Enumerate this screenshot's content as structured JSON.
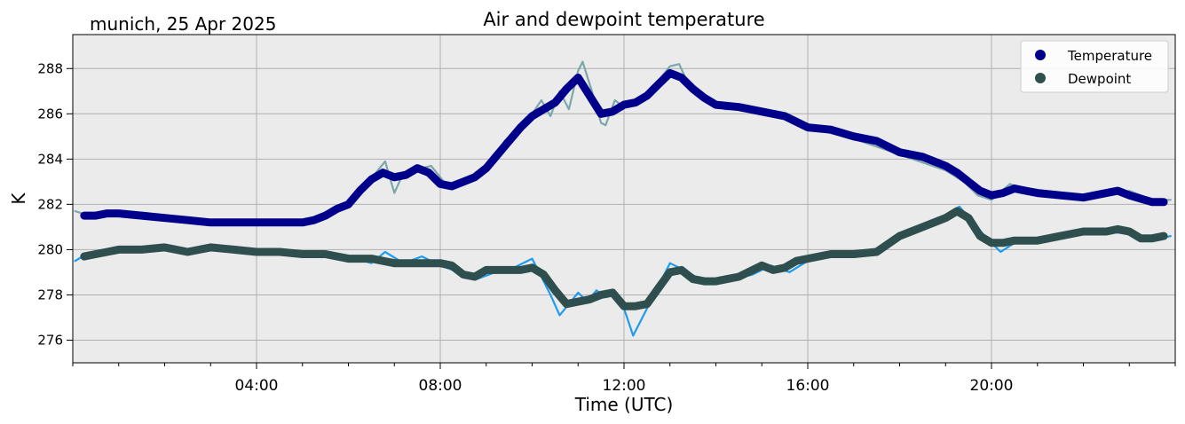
{
  "chart_data": {
    "type": "line",
    "title": "Air and dewpoint temperature",
    "subtitle": "munich, 25 Apr 2025",
    "xlabel": "Time (UTC)",
    "ylabel": "K",
    "xlim": [
      0,
      24
    ],
    "ylim": [
      275,
      289.5
    ],
    "x_ticks": [
      4,
      8,
      12,
      16,
      20
    ],
    "x_tick_labels": [
      "04:00",
      "08:00",
      "12:00",
      "16:00",
      "20:00"
    ],
    "y_ticks": [
      276,
      278,
      280,
      282,
      284,
      286,
      288
    ],
    "y_tick_labels": [
      "276",
      "278",
      "280",
      "282",
      "284",
      "286",
      "288"
    ],
    "grid": true,
    "legend_position": "top-right",
    "background": "#ebebeb",
    "series": [
      {
        "name": "Temperature",
        "role": "smoothed",
        "color": "#00008b",
        "x": [
          0.25,
          0.5,
          0.75,
          1.0,
          1.5,
          2.0,
          2.5,
          3.0,
          3.5,
          4.0,
          4.5,
          5.0,
          5.25,
          5.5,
          5.75,
          6.0,
          6.25,
          6.5,
          6.75,
          7.0,
          7.25,
          7.5,
          7.75,
          8.0,
          8.25,
          8.5,
          8.75,
          9.0,
          9.25,
          9.5,
          9.75,
          10.0,
          10.25,
          10.5,
          10.75,
          11.0,
          11.25,
          11.5,
          11.75,
          12.0,
          12.25,
          12.5,
          12.75,
          13.0,
          13.25,
          13.5,
          13.75,
          14.0,
          14.5,
          15.0,
          15.5,
          16.0,
          16.5,
          17.0,
          17.5,
          18.0,
          18.5,
          19.0,
          19.25,
          19.5,
          19.75,
          20.0,
          20.25,
          20.5,
          20.75,
          21.0,
          21.5,
          22.0,
          22.5,
          22.75,
          23.0,
          23.5,
          23.75
        ],
        "y": [
          281.5,
          281.5,
          281.6,
          281.6,
          281.5,
          281.4,
          281.3,
          281.2,
          281.2,
          281.2,
          281.2,
          281.2,
          281.3,
          281.5,
          281.8,
          282.0,
          282.6,
          283.1,
          283.4,
          283.2,
          283.3,
          283.6,
          283.4,
          282.9,
          282.8,
          283.0,
          283.2,
          283.6,
          284.2,
          284.8,
          285.4,
          285.9,
          286.2,
          286.5,
          287.1,
          287.6,
          286.8,
          286.0,
          286.1,
          286.4,
          286.5,
          286.8,
          287.3,
          287.8,
          287.6,
          287.1,
          286.7,
          286.4,
          286.3,
          286.1,
          285.9,
          285.4,
          285.3,
          285.0,
          284.8,
          284.3,
          284.1,
          283.7,
          283.4,
          283.0,
          282.6,
          282.4,
          282.5,
          282.7,
          282.6,
          282.5,
          282.4,
          282.3,
          282.5,
          282.6,
          282.4,
          282.1,
          282.1
        ]
      },
      {
        "name": "Dewpoint",
        "role": "smoothed",
        "color": "#2f4f4f",
        "x": [
          0.25,
          0.5,
          0.75,
          1.0,
          1.5,
          2.0,
          2.5,
          3.0,
          3.5,
          4.0,
          4.5,
          5.0,
          5.5,
          6.0,
          6.5,
          7.0,
          7.5,
          8.0,
          8.25,
          8.5,
          8.75,
          9.0,
          9.25,
          9.5,
          9.75,
          10.0,
          10.25,
          10.5,
          10.75,
          11.0,
          11.25,
          11.5,
          11.75,
          12.0,
          12.25,
          12.5,
          12.75,
          13.0,
          13.25,
          13.5,
          13.75,
          14.0,
          14.5,
          15.0,
          15.25,
          15.5,
          15.75,
          16.0,
          16.5,
          17.0,
          17.5,
          18.0,
          18.5,
          19.0,
          19.25,
          19.5,
          19.75,
          20.0,
          20.25,
          20.5,
          21.0,
          21.5,
          22.0,
          22.5,
          22.75,
          23.0,
          23.25,
          23.5,
          23.75
        ],
        "y": [
          279.7,
          279.8,
          279.9,
          280.0,
          280.0,
          280.1,
          279.9,
          280.1,
          280.0,
          279.9,
          279.9,
          279.8,
          279.8,
          279.6,
          279.6,
          279.4,
          279.4,
          279.4,
          279.3,
          278.9,
          278.8,
          279.1,
          279.1,
          279.1,
          279.1,
          279.2,
          278.9,
          278.2,
          277.6,
          277.7,
          277.8,
          278.0,
          278.1,
          277.5,
          277.5,
          277.6,
          278.3,
          279.0,
          279.1,
          278.7,
          278.6,
          278.6,
          278.8,
          279.3,
          279.1,
          279.2,
          279.5,
          279.6,
          279.8,
          279.8,
          279.9,
          280.6,
          281.0,
          281.4,
          281.7,
          281.4,
          280.6,
          280.3,
          280.3,
          280.4,
          280.4,
          280.6,
          280.8,
          280.8,
          280.9,
          280.8,
          280.5,
          280.5,
          280.6
        ]
      },
      {
        "name": "",
        "role": "raw-temperature",
        "color": "#7aa7aa",
        "x": [
          0.05,
          0.2,
          0.5,
          1.0,
          2.0,
          3.0,
          3.5,
          4.0,
          5.0,
          6.0,
          6.4,
          6.6,
          6.8,
          7.0,
          7.2,
          7.4,
          7.8,
          8.2,
          8.6,
          9.0,
          9.4,
          9.8,
          10.0,
          10.2,
          10.4,
          10.6,
          10.8,
          11.0,
          11.1,
          11.3,
          11.5,
          11.6,
          11.8,
          12.0,
          12.4,
          12.6,
          12.8,
          13.0,
          13.2,
          13.4,
          13.8,
          14.2,
          15.0,
          16.0,
          17.0,
          18.0,
          19.0,
          19.4,
          19.7,
          20.0,
          20.4,
          20.8,
          21.5,
          22.5,
          23.0,
          23.5,
          23.9
        ],
        "y": [
          281.7,
          281.6,
          281.5,
          281.6,
          281.4,
          281.2,
          281.2,
          281.2,
          281.2,
          282.0,
          282.8,
          283.4,
          283.9,
          282.5,
          283.4,
          283.5,
          283.7,
          282.7,
          283.0,
          283.6,
          284.8,
          285.6,
          286.0,
          286.6,
          285.9,
          287.0,
          286.2,
          287.9,
          288.3,
          287.0,
          285.6,
          285.5,
          286.6,
          286.3,
          286.6,
          287.2,
          287.6,
          288.1,
          288.2,
          287.3,
          286.5,
          286.2,
          286.2,
          285.4,
          284.9,
          284.2,
          283.5,
          283.0,
          282.4,
          282.2,
          282.9,
          282.6,
          282.4,
          282.4,
          282.6,
          282.2,
          282.2
        ]
      },
      {
        "name": "",
        "role": "raw-dewpoint",
        "color": "#1e9bec",
        "x": [
          0.05,
          0.3,
          0.6,
          1.0,
          1.5,
          2.0,
          2.5,
          3.0,
          3.5,
          4.0,
          5.0,
          6.0,
          6.5,
          6.8,
          7.2,
          7.6,
          8.0,
          8.4,
          8.8,
          9.2,
          9.6,
          10.0,
          10.2,
          10.4,
          10.6,
          10.8,
          11.0,
          11.2,
          11.4,
          11.6,
          11.8,
          12.0,
          12.2,
          12.4,
          12.6,
          12.8,
          13.0,
          13.4,
          13.8,
          14.2,
          14.8,
          15.2,
          15.6,
          16.0,
          16.5,
          17.0,
          17.5,
          18.0,
          18.5,
          19.0,
          19.3,
          19.6,
          19.9,
          20.2,
          20.5,
          21.0,
          21.5,
          22.0,
          22.5,
          23.0,
          23.5,
          23.9
        ],
        "y": [
          279.5,
          279.8,
          279.9,
          280.0,
          280.1,
          280.0,
          280.0,
          280.2,
          280.0,
          279.9,
          279.8,
          279.7,
          279.4,
          279.9,
          279.4,
          279.7,
          279.3,
          279.0,
          278.7,
          279.0,
          279.2,
          279.6,
          278.8,
          278.0,
          277.1,
          277.6,
          278.1,
          277.7,
          278.2,
          277.9,
          278.0,
          277.4,
          276.2,
          277.0,
          277.8,
          278.6,
          279.4,
          279.0,
          278.5,
          278.6,
          278.9,
          279.3,
          279.0,
          279.5,
          279.8,
          279.8,
          279.9,
          280.5,
          281.0,
          281.5,
          281.9,
          281.2,
          280.5,
          279.9,
          280.3,
          280.4,
          280.6,
          280.8,
          280.8,
          280.7,
          280.4,
          280.6
        ]
      }
    ]
  }
}
